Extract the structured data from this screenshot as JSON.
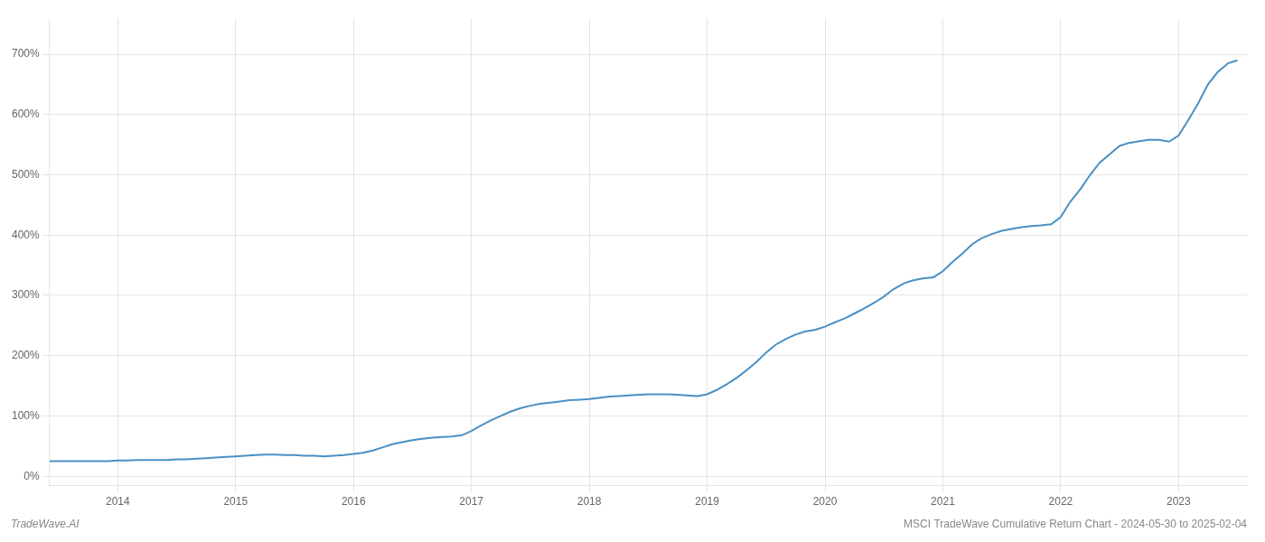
{
  "chart_data": {
    "type": "line",
    "title": "MSCI TradeWave Cumulative Return Chart - 2024-05-30 to 2025-02-04",
    "annotations": [
      "TradeWave.AI"
    ],
    "color": "#4a90c4",
    "grid": true,
    "xlim": [
      2013.42,
      2023.58
    ],
    "xticks": [
      2014,
      2015,
      2016,
      2017,
      2018,
      2019,
      2020,
      2021,
      2022,
      2023
    ],
    "ylim": [
      -15,
      760
    ],
    "yticks": [
      {
        "value": 0,
        "label": "0%"
      },
      {
        "value": 100,
        "label": "100%"
      },
      {
        "value": 200,
        "label": "200%"
      },
      {
        "value": 300,
        "label": "300%"
      },
      {
        "value": 400,
        "label": "400%"
      },
      {
        "value": 500,
        "label": "500%"
      },
      {
        "value": 600,
        "label": "600%"
      },
      {
        "value": 700,
        "label": "700%"
      }
    ],
    "x": [
      2013.42,
      2013.5,
      2013.58,
      2013.67,
      2013.75,
      2013.83,
      2013.92,
      2014.0,
      2014.08,
      2014.17,
      2014.25,
      2014.33,
      2014.42,
      2014.5,
      2014.58,
      2014.67,
      2014.75,
      2014.83,
      2014.92,
      2015.0,
      2015.08,
      2015.17,
      2015.25,
      2015.33,
      2015.42,
      2015.5,
      2015.58,
      2015.67,
      2015.75,
      2015.83,
      2015.92,
      2016.0,
      2016.08,
      2016.17,
      2016.25,
      2016.33,
      2016.42,
      2016.5,
      2016.58,
      2016.67,
      2016.75,
      2016.83,
      2016.92,
      2017.0,
      2017.08,
      2017.17,
      2017.25,
      2017.33,
      2017.42,
      2017.5,
      2017.58,
      2017.67,
      2017.75,
      2017.83,
      2017.92,
      2018.0,
      2018.08,
      2018.17,
      2018.25,
      2018.33,
      2018.42,
      2018.5,
      2018.58,
      2018.67,
      2018.75,
      2018.83,
      2018.92,
      2019.0,
      2019.08,
      2019.17,
      2019.25,
      2019.33,
      2019.42,
      2019.5,
      2019.58,
      2019.67,
      2019.75,
      2019.83,
      2019.92,
      2020.0,
      2020.08,
      2020.17,
      2020.25,
      2020.33,
      2020.42,
      2020.5,
      2020.58,
      2020.67,
      2020.75,
      2020.83,
      2020.92,
      2021.0,
      2021.08,
      2021.17,
      2021.25,
      2021.33,
      2021.42,
      2021.5,
      2021.58,
      2021.67,
      2021.75,
      2021.83,
      2021.92,
      2022.0,
      2022.08,
      2022.17,
      2022.25,
      2022.33,
      2022.42,
      2022.5,
      2022.58,
      2022.67,
      2022.75,
      2022.83,
      2022.92,
      2023.0,
      2023.08,
      2023.17,
      2023.25,
      2023.33,
      2023.42,
      2023.5
    ],
    "values": [
      25,
      25,
      25,
      25,
      25,
      25,
      25,
      26,
      26,
      27,
      27,
      27,
      27,
      28,
      28,
      29,
      30,
      31,
      32,
      33,
      34,
      35,
      36,
      36,
      35,
      35,
      34,
      34,
      33,
      34,
      35,
      37,
      39,
      43,
      48,
      53,
      57,
      60,
      62,
      64,
      65,
      66,
      68,
      75,
      84,
      93,
      100,
      107,
      113,
      117,
      120,
      122,
      124,
      126,
      127,
      128,
      130,
      132,
      133,
      134,
      135,
      136,
      136,
      136,
      135,
      134,
      133,
      136,
      143,
      153,
      163,
      175,
      190,
      205,
      218,
      228,
      235,
      240,
      243,
      248,
      255,
      262,
      270,
      278,
      288,
      298,
      310,
      320,
      325,
      328,
      330,
      340,
      355,
      370,
      385,
      395,
      402,
      407,
      410,
      413,
      415,
      416,
      418,
      430,
      455,
      477,
      500,
      520,
      535,
      548,
      553,
      556,
      558,
      558,
      555,
      565,
      590,
      620,
      650,
      670,
      685,
      690
    ]
  }
}
